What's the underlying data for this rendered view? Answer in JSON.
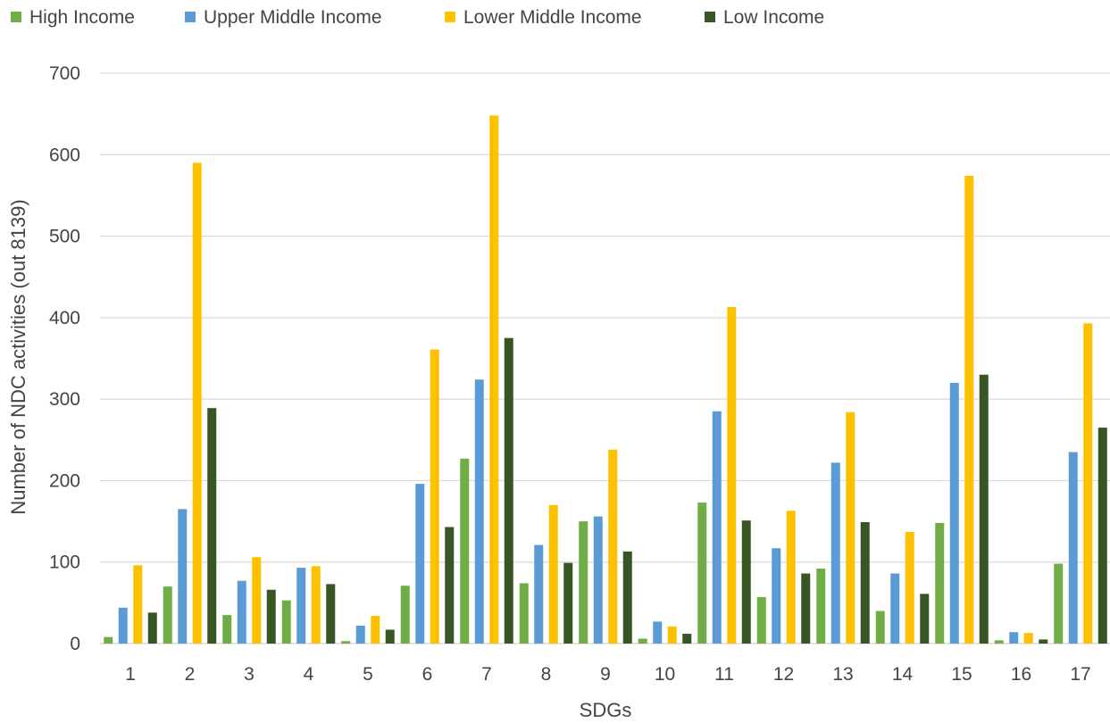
{
  "chart_data": {
    "type": "bar",
    "title": "",
    "xlabel": "SDGs",
    "ylabel": "Number of NDC activities (out 8139)",
    "ylim": [
      0,
      700
    ],
    "yticks": [
      0,
      100,
      200,
      300,
      400,
      500,
      600,
      700
    ],
    "grid": true,
    "legend_position": "top-left",
    "categories": [
      "1",
      "2",
      "3",
      "4",
      "5",
      "6",
      "7",
      "8",
      "9",
      "10",
      "11",
      "12",
      "13",
      "14",
      "15",
      "16",
      "17"
    ],
    "series": [
      {
        "name": "High Income",
        "color": "#70ad47",
        "values": [
          8,
          70,
          35,
          53,
          3,
          71,
          227,
          74,
          150,
          6,
          173,
          57,
          92,
          40,
          148,
          4,
          98
        ]
      },
      {
        "name": "Upper Middle Income",
        "color": "#5b9bd5",
        "values": [
          44,
          165,
          77,
          93,
          22,
          196,
          324,
          121,
          156,
          27,
          285,
          117,
          222,
          86,
          320,
          14,
          235
        ]
      },
      {
        "name": "Lower Middle Income",
        "color": "#ffc000",
        "values": [
          96,
          590,
          106,
          95,
          34,
          361,
          648,
          170,
          238,
          21,
          413,
          163,
          284,
          137,
          574,
          13,
          393
        ]
      },
      {
        "name": "Low Income",
        "color": "#375623",
        "values": [
          38,
          289,
          66,
          73,
          17,
          143,
          375,
          99,
          113,
          12,
          151,
          86,
          149,
          61,
          330,
          5,
          265
        ]
      }
    ]
  }
}
